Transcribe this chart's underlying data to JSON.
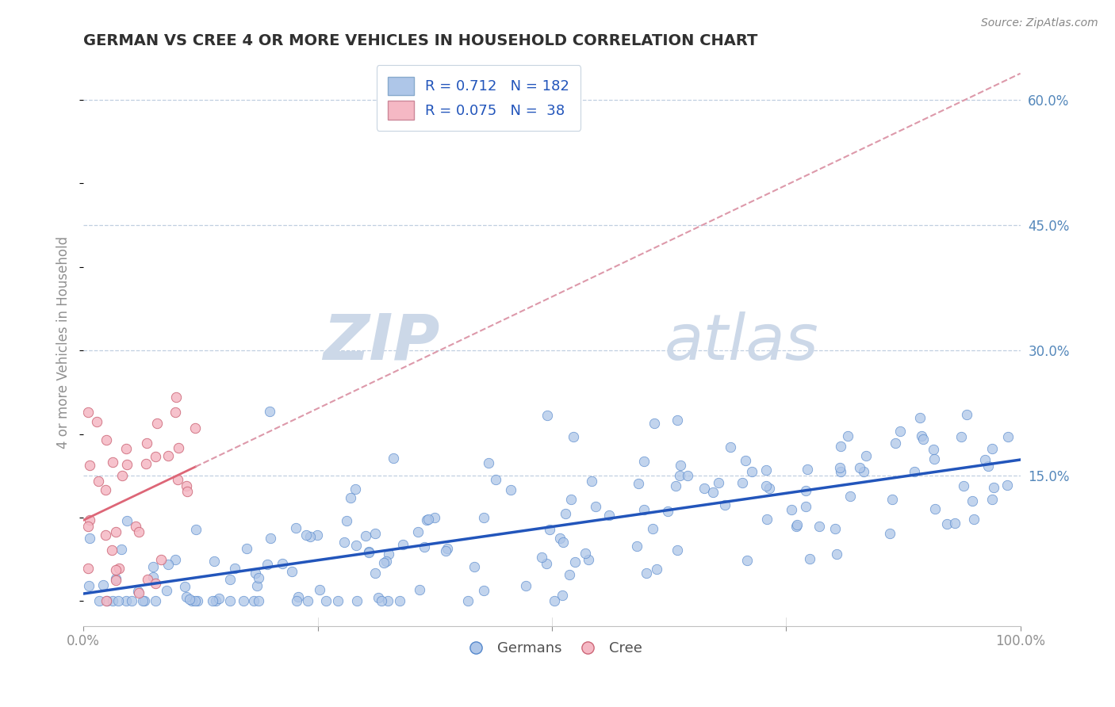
{
  "title": "GERMAN VS CREE 4 OR MORE VEHICLES IN HOUSEHOLD CORRELATION CHART",
  "source": "Source: ZipAtlas.com",
  "ylabel": "4 or more Vehicles in Household",
  "xlim": [
    0,
    1.0
  ],
  "ylim": [
    -0.03,
    0.65
  ],
  "german_color": "#aec6e8",
  "german_edge_color": "#5588cc",
  "cree_color": "#f5b8c4",
  "cree_edge_color": "#cc6677",
  "german_line_color": "#2255bb",
  "cree_line_color": "#dd6677",
  "cree_dash_color": "#dd99aa",
  "legend_blue_color": "#aec6e8",
  "legend_pink_color": "#f5b8c4",
  "R_german": 0.712,
  "N_german": 182,
  "R_cree": 0.075,
  "N_cree": 38,
  "watermark_zip": "ZIP",
  "watermark_atlas": "atlas",
  "watermark_color": "#ccd8e8",
  "background_color": "#ffffff",
  "grid_color": "#c0cfe0",
  "title_color": "#303030",
  "tick_color": "#909090",
  "right_ytick_color": "#5588bb",
  "ytick_vals": [
    0.15,
    0.3,
    0.45,
    0.6
  ],
  "ytick_labels": [
    "15.0%",
    "30.0%",
    "45.0%",
    "60.0%"
  ]
}
